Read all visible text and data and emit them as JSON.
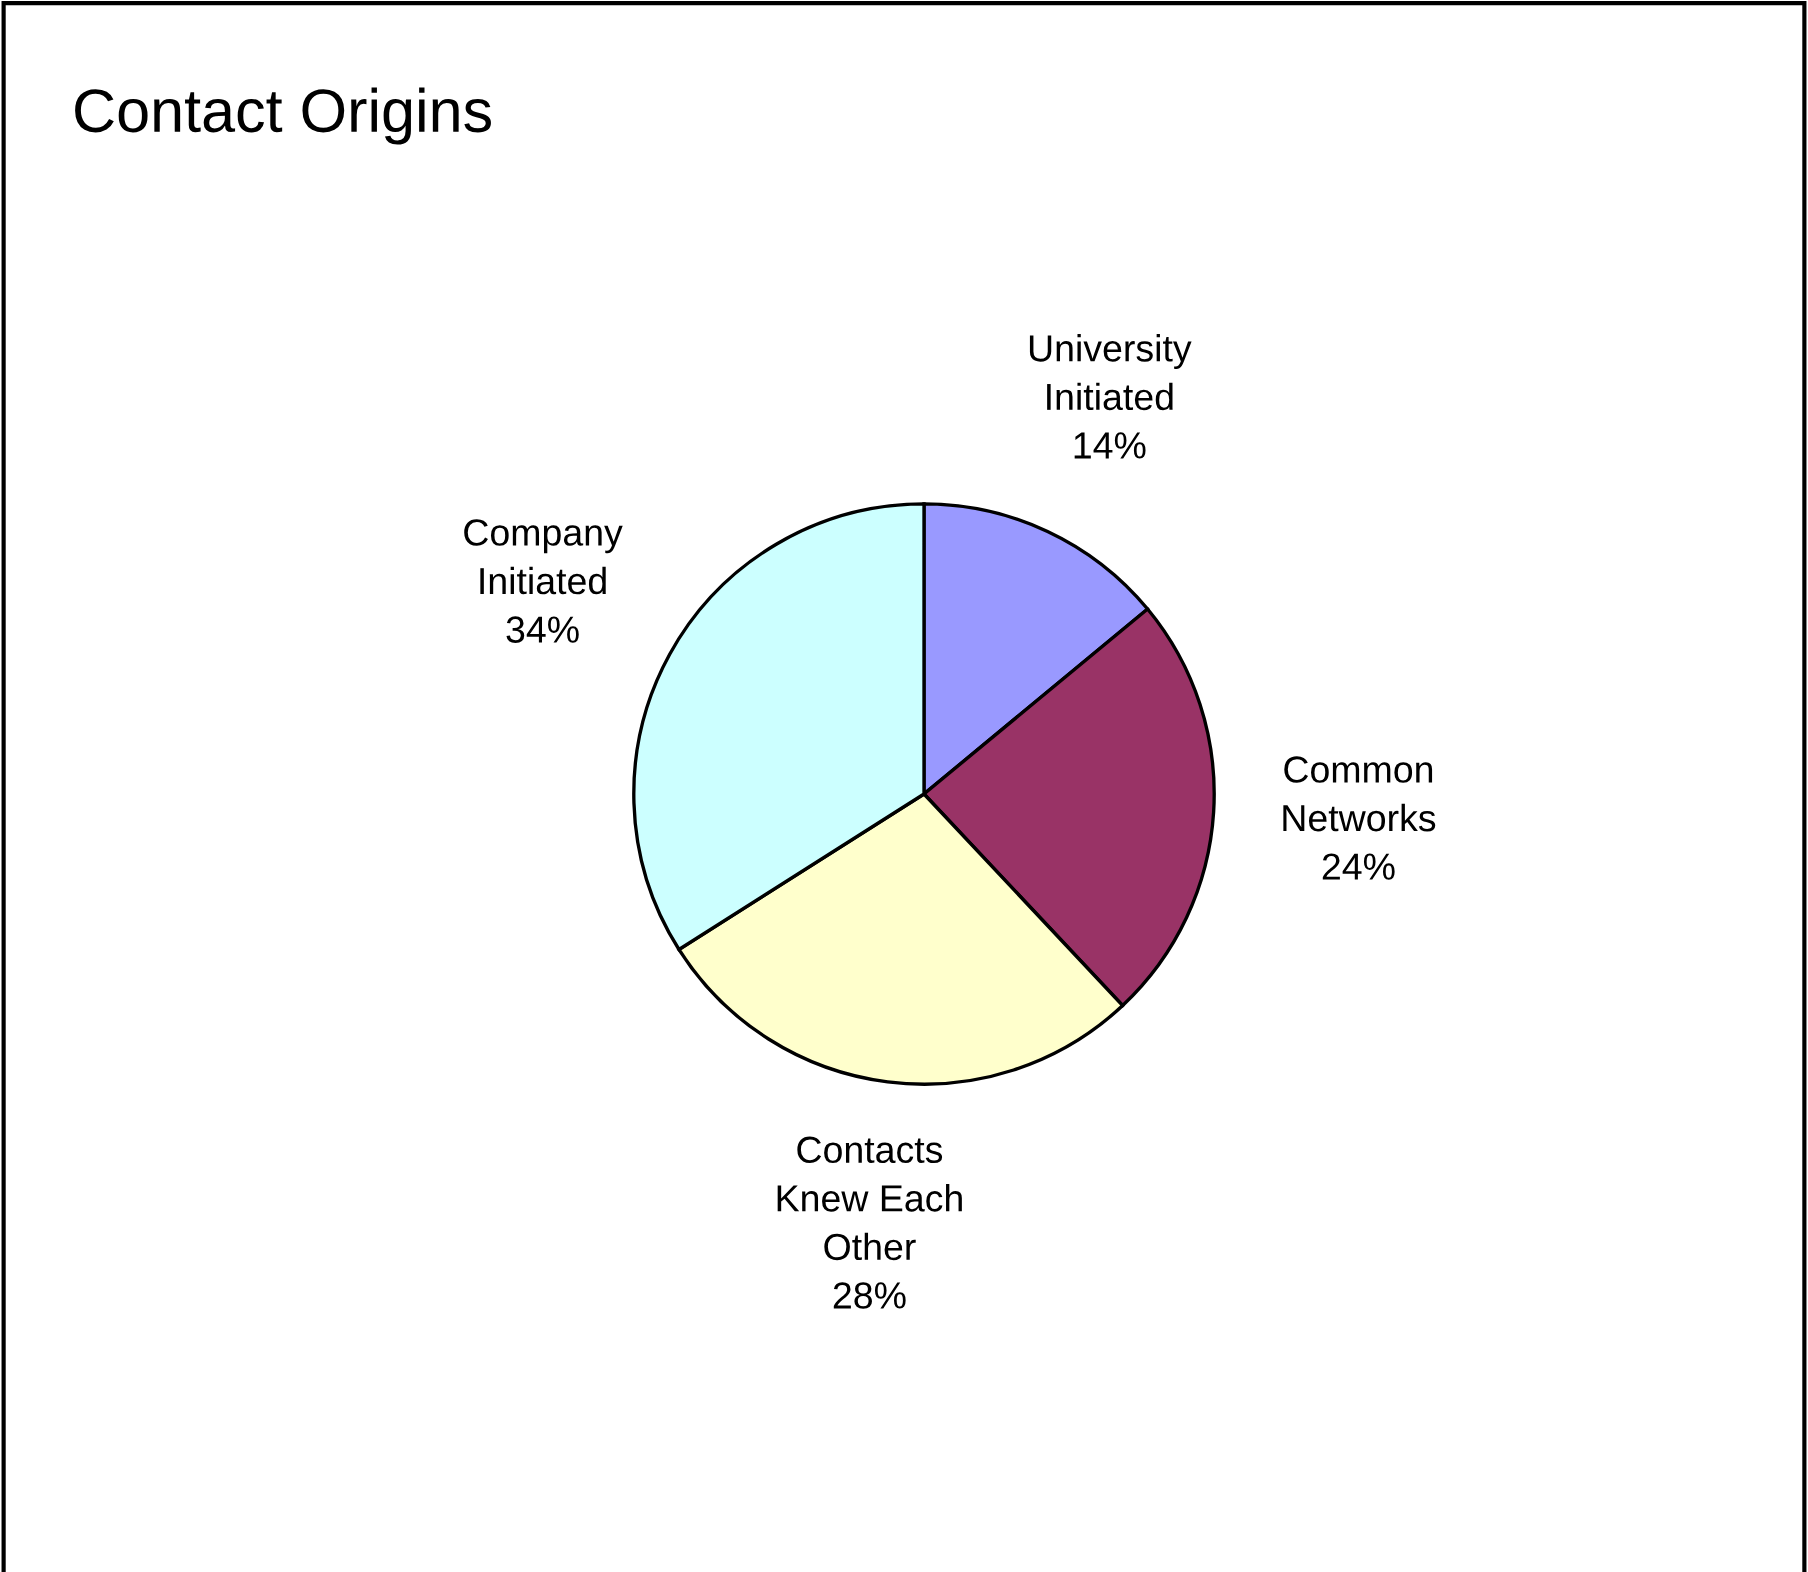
{
  "chart_data": {
    "type": "pie",
    "title": "Contact Origins",
    "categories": [
      "University\nInitiated",
      "Common\nNetworks",
      "Contacts\nKnew Each\nOther",
      "Company\nInitiated"
    ],
    "values": [
      14,
      24,
      28,
      34
    ],
    "value_labels": [
      "14%",
      "24%",
      "28%",
      "34%"
    ],
    "colors": [
      "#9999ff",
      "#993366",
      "#ffffcc",
      "#ccffff"
    ],
    "legend": false
  }
}
